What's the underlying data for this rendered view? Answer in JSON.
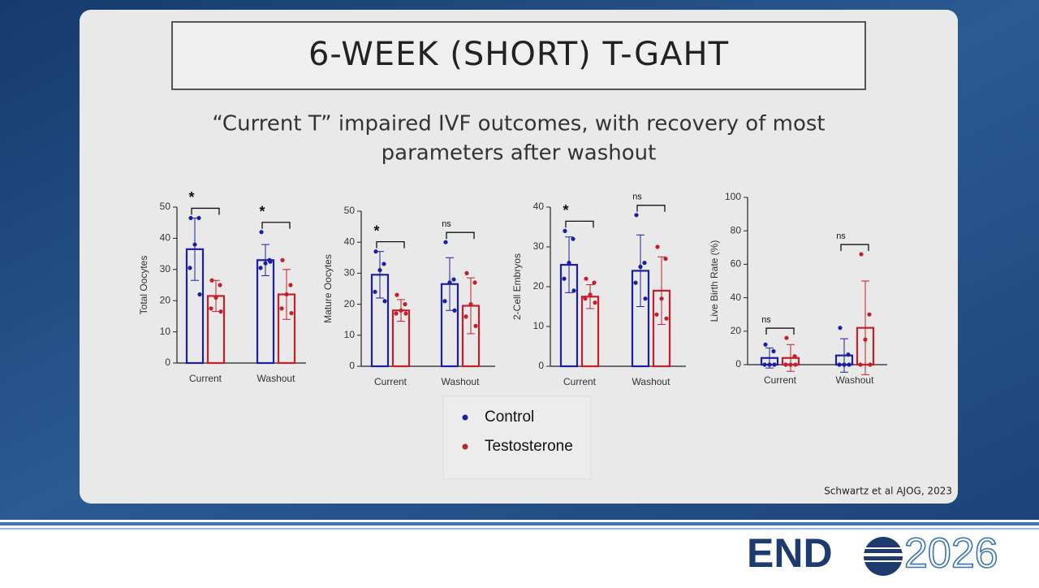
{
  "slide": {
    "title": "6-WEEK (SHORT) T-GAHT",
    "subtitle": [
      "“Current T” impaired IVF outcomes, with recovery of most",
      "parameters after washout"
    ],
    "citation": "Schwartz et al AJOG, 2023",
    "logo": {
      "text": "END",
      "year": "2026"
    }
  },
  "legend": {
    "items": [
      {
        "name": "Control",
        "color": "#1d1fa3"
      },
      {
        "name": "Testosterone",
        "color": "#c4202c"
      }
    ]
  },
  "chart_data": [
    {
      "type": "bar",
      "y_label": "Total Oocytes",
      "categories": [
        "Current",
        "Washout"
      ],
      "ylim": [
        0,
        50
      ],
      "yticks": [
        0,
        10,
        20,
        30,
        40,
        50
      ],
      "series": [
        {
          "values": [
            36.5,
            33
          ],
          "errors": [
            10,
            5
          ],
          "points": [
            [
              46.5,
              46.5,
              38,
              30.5,
              22
            ],
            [
              42,
              33,
              32,
              30.5,
              32.5
            ]
          ]
        },
        {
          "values": [
            21.5,
            22
          ],
          "errors": [
            5,
            8
          ],
          "points": [
            [
              26.5,
              25,
              21,
              17.5,
              16.5
            ],
            [
              33,
              25,
              22,
              17.5,
              16
            ]
          ]
        }
      ],
      "annotations": [
        "*",
        "*"
      ]
    },
    {
      "type": "bar",
      "y_label": "Mature Oocytes",
      "categories": [
        "Current",
        "Washout"
      ],
      "ylim": [
        0,
        50
      ],
      "yticks": [
        0,
        10,
        20,
        30,
        40,
        50
      ],
      "series": [
        {
          "values": [
            29.5,
            26.5
          ],
          "errors": [
            7.5,
            8.5
          ],
          "points": [
            [
              37,
              33,
              31,
              24,
              21
            ],
            [
              40,
              28,
              27,
              21,
              18
            ]
          ]
        },
        {
          "values": [
            18,
            19.5
          ],
          "errors": [
            3.5,
            9
          ],
          "points": [
            [
              23,
              20,
              18,
              17,
              17
            ],
            [
              30,
              27,
              20,
              16,
              13
            ]
          ]
        }
      ],
      "annotations": [
        "*",
        "ns"
      ]
    },
    {
      "type": "bar",
      "y_label": "2-Cell Embryos",
      "categories": [
        "Current",
        "Washout"
      ],
      "ylim": [
        0,
        40
      ],
      "yticks": [
        0,
        10,
        20,
        30,
        40
      ],
      "series": [
        {
          "values": [
            25.5,
            24
          ],
          "errors": [
            7,
            9
          ],
          "points": [
            [
              34,
              32,
              26,
              22,
              19
            ],
            [
              38,
              26,
              25,
              21,
              17
            ]
          ]
        },
        {
          "values": [
            17.5,
            19
          ],
          "errors": [
            3,
            8.5
          ],
          "points": [
            [
              22,
              21,
              18,
              17,
              16
            ],
            [
              30,
              27,
              17,
              13,
              12
            ]
          ]
        }
      ],
      "annotations": [
        "*",
        "ns"
      ]
    },
    {
      "type": "bar",
      "y_label": "Live Birth Rate (%)",
      "categories": [
        "Current",
        "Washout"
      ],
      "ylim": [
        0,
        100
      ],
      "yticks": [
        0,
        20,
        40,
        60,
        80,
        100
      ],
      "series": [
        {
          "values": [
            4,
            5.5
          ],
          "errors": [
            6,
            10
          ],
          "points": [
            [
              12,
              8,
              0,
              0,
              0
            ],
            [
              22,
              6,
              0,
              0,
              0
            ]
          ]
        },
        {
          "values": [
            4,
            22
          ],
          "errors": [
            8,
            28
          ],
          "points": [
            [
              16,
              5,
              0,
              0,
              0
            ],
            [
              66,
              30,
              15,
              0,
              0
            ]
          ]
        }
      ],
      "annotations": [
        "ns",
        "ns"
      ]
    }
  ]
}
